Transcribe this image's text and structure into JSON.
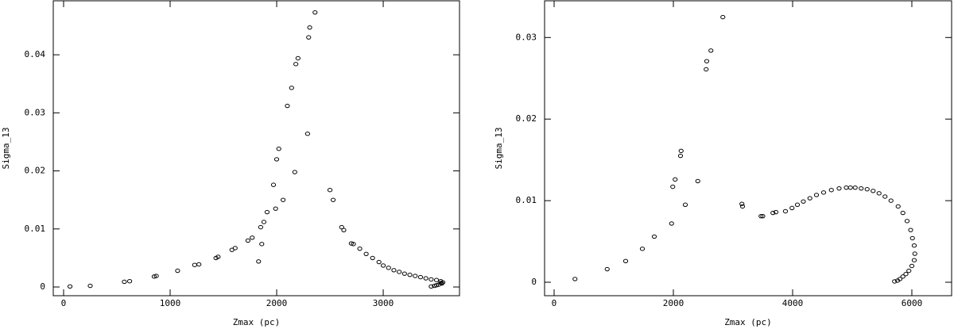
{
  "chart_data": [
    {
      "type": "scatter",
      "x_label": "Zmax (pc)",
      "y_label": "Sigma_13",
      "xlim": [
        -97,
        3716
      ],
      "ylim": [
        -0.0015,
        0.0493
      ],
      "xticks": [
        0,
        1000,
        2000,
        3000
      ],
      "yticks": [
        0,
        0.01,
        0.02,
        0.03,
        0.04
      ],
      "color": "#000000",
      "x": [
        60,
        250,
        570,
        620,
        850,
        870,
        1070,
        1230,
        1270,
        1430,
        1450,
        1580,
        1610,
        1730,
        1770,
        1830,
        1850,
        1860,
        1880,
        1910,
        1970,
        1990,
        2000,
        2020,
        2060,
        2100,
        2140,
        2170,
        2180,
        2200,
        2290,
        2300,
        2310,
        2360,
        2500,
        2530,
        2610,
        2630,
        2700,
        2720,
        2780,
        2840,
        2900,
        2960,
        3000,
        3050,
        3100,
        3150,
        3200,
        3250,
        3300,
        3350,
        3400,
        3450,
        3500,
        3540,
        3560,
        3550,
        3520,
        3480,
        3450,
        3500,
        3540
      ],
      "y": [
        0.0001,
        0.0002,
        0.0009,
        0.001,
        0.0018,
        0.0019,
        0.0028,
        0.0038,
        0.0039,
        0.005,
        0.0052,
        0.0064,
        0.0067,
        0.008,
        0.0085,
        0.0044,
        0.0103,
        0.0074,
        0.0112,
        0.0129,
        0.0176,
        0.0135,
        0.022,
        0.0238,
        0.015,
        0.0312,
        0.0343,
        0.0198,
        0.0384,
        0.0394,
        0.0264,
        0.043,
        0.0447,
        0.0473,
        0.0167,
        0.015,
        0.0103,
        0.0098,
        0.0075,
        0.0074,
        0.0066,
        0.0057,
        0.005,
        0.0043,
        0.0037,
        0.0033,
        0.0029,
        0.0026,
        0.0023,
        0.0021,
        0.0019,
        0.0017,
        0.0015,
        0.0013,
        0.0012,
        0.001,
        0.0008,
        0.0006,
        0.0004,
        0.0002,
        0.0001,
        0.0003,
        0.0007
      ]
    },
    {
      "type": "scatter",
      "x_label": "Zmax (pc)",
      "y_label": "Sigma_13",
      "xlim": [
        -160,
        6667
      ],
      "ylim": [
        -0.00165,
        0.0345
      ],
      "xticks": [
        0,
        2000,
        4000,
        6000
      ],
      "yticks": [
        0,
        0.01,
        0.02,
        0.03
      ],
      "color": "#000000",
      "x": [
        350,
        890,
        1200,
        1480,
        1680,
        1970,
        1990,
        2030,
        2120,
        2130,
        2200,
        2410,
        2550,
        2560,
        2630,
        2830,
        3150,
        3160,
        3470,
        3500,
        3670,
        3720,
        3880,
        3990,
        4080,
        4180,
        4290,
        4400,
        4520,
        4650,
        4780,
        4900,
        4970,
        5050,
        5150,
        5250,
        5350,
        5450,
        5550,
        5650,
        5770,
        5850,
        5920,
        5980,
        6010,
        6040,
        6050,
        6040,
        6000,
        5950,
        5900,
        5850,
        5800,
        5760,
        5710
      ],
      "y": [
        0.0004,
        0.0016,
        0.0026,
        0.0041,
        0.0056,
        0.0072,
        0.0117,
        0.0126,
        0.0155,
        0.0161,
        0.0095,
        0.0124,
        0.0261,
        0.0271,
        0.0284,
        0.0325,
        0.0096,
        0.0093,
        0.0081,
        0.0081,
        0.0085,
        0.0086,
        0.0087,
        0.0091,
        0.0095,
        0.0099,
        0.0103,
        0.0107,
        0.011,
        0.0113,
        0.0115,
        0.0116,
        0.0116,
        0.0116,
        0.0115,
        0.0114,
        0.0112,
        0.0109,
        0.0105,
        0.01,
        0.0093,
        0.0085,
        0.0075,
        0.0064,
        0.0054,
        0.0045,
        0.0035,
        0.0027,
        0.002,
        0.0014,
        0.001,
        0.0007,
        0.0004,
        0.0002,
        0.0001
      ]
    }
  ]
}
